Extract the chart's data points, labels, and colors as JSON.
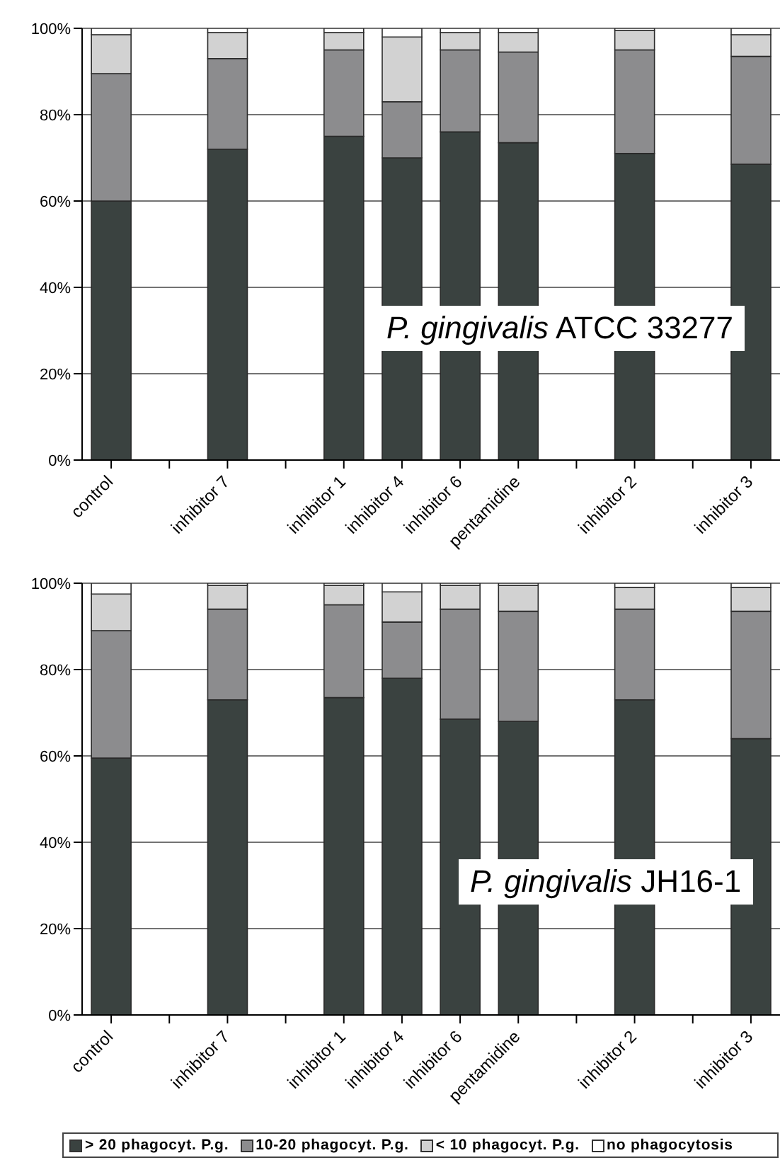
{
  "chart_data": [
    {
      "type": "bar",
      "stacked": true,
      "categories": [
        "control",
        null,
        "inhibitor 7",
        null,
        "inhibitor 1",
        "inhibitor 4",
        "inhibitor 6",
        "pentamidine",
        null,
        "inhibitor 2",
        null,
        "inhibitor 3"
      ],
      "series": [
        {
          "color": "#3a4240",
          "values": [
            60,
            null,
            72,
            null,
            75,
            70,
            76,
            73.5,
            null,
            71,
            null,
            68.5
          ]
        },
        {
          "color": "#8c8c8e",
          "values": [
            29.5,
            null,
            21,
            null,
            20,
            13,
            19,
            21,
            null,
            24,
            null,
            25
          ]
        },
        {
          "color": "#d2d2d2",
          "values": [
            9,
            null,
            6,
            null,
            4,
            15,
            4,
            4.5,
            null,
            4.5,
            null,
            5
          ]
        },
        {
          "color": "#ffffff",
          "values": [
            1.5,
            null,
            1,
            null,
            1,
            2,
            1,
            1,
            null,
            0.5,
            null,
            1.5
          ]
        }
      ],
      "ylim": [
        0,
        100
      ],
      "yticks": [
        {
          "value": 0,
          "label": "0%"
        },
        {
          "value": 20,
          "label": "20%"
        },
        {
          "value": 40,
          "label": "40%"
        },
        {
          "value": 60,
          "label": "60%"
        },
        {
          "value": 80,
          "label": "80%"
        },
        {
          "value": 100,
          "label": "100%"
        }
      ],
      "grid": "y",
      "legend": false,
      "annotations": [
        "P. gingivalis ATCC 33277"
      ]
    },
    {
      "type": "bar",
      "stacked": true,
      "categories": [
        "control",
        null,
        "inhibitor 7",
        null,
        "inhibitor 1",
        "inhibitor 4",
        "inhibitor 6",
        "pentamidine",
        null,
        "inhibitor 2",
        null,
        "inhibitor 3"
      ],
      "series": [
        {
          "name": "> 20 phagocyt. P.g.",
          "color": "#3a4240",
          "values": [
            59.5,
            null,
            73,
            null,
            73.5,
            78,
            68.5,
            68,
            null,
            73,
            null,
            64
          ]
        },
        {
          "name": "10-20 phagocyt. P.g.",
          "color": "#8c8c8e",
          "values": [
            29.5,
            null,
            21,
            null,
            21.5,
            13,
            25.5,
            25.5,
            null,
            21,
            null,
            29.5
          ]
        },
        {
          "name": "< 10 phagocyt. P.g.",
          "color": "#d2d2d2",
          "values": [
            8.5,
            null,
            5.5,
            null,
            4.5,
            7,
            5.5,
            6,
            null,
            5,
            null,
            5.5
          ]
        },
        {
          "name": "no phagocytosis",
          "color": "#ffffff",
          "values": [
            2.5,
            null,
            0.5,
            null,
            0.5,
            2,
            0.5,
            0.5,
            null,
            1,
            null,
            1
          ]
        }
      ],
      "ylim": [
        0,
        100
      ],
      "yticks": [
        {
          "value": 0,
          "label": "0%"
        },
        {
          "value": 20,
          "label": "20%"
        },
        {
          "value": 40,
          "label": "40%"
        },
        {
          "value": 60,
          "label": "60%"
        },
        {
          "value": 80,
          "label": "80%"
        },
        {
          "value": 100,
          "label": "100%"
        }
      ],
      "grid": "y",
      "legend": "bottom",
      "annotations": [
        "P. gingivalis JH16-1"
      ]
    }
  ]
}
